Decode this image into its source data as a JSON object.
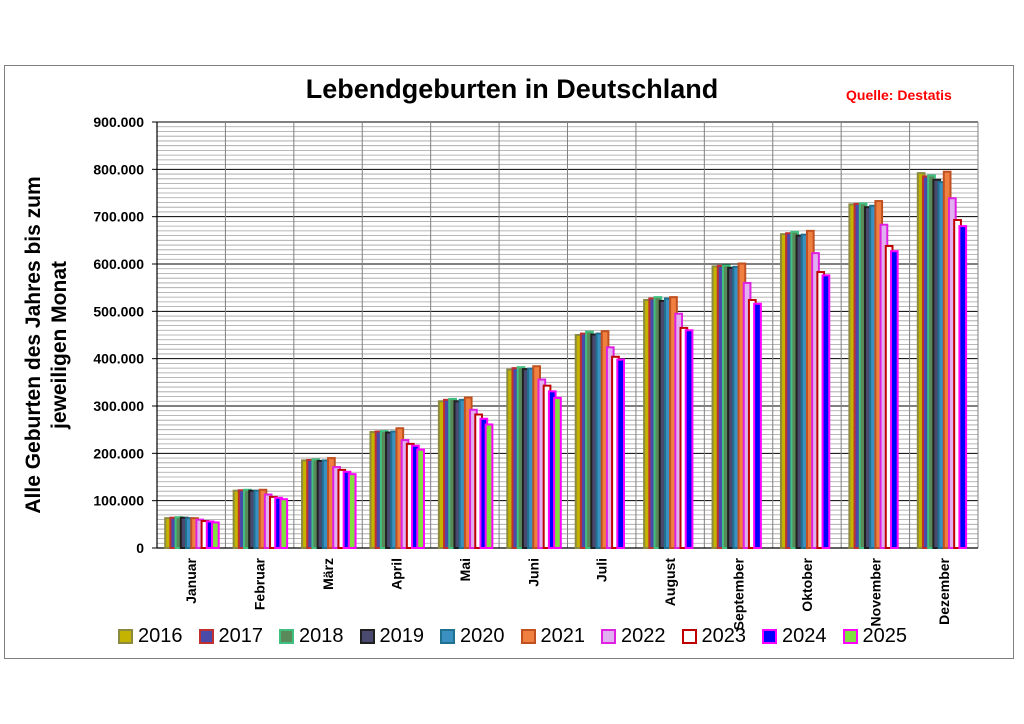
{
  "chart_data": {
    "type": "bar",
    "title": "Lebendgeburten in Deutschland",
    "source": "Quelle: Destatis",
    "ylabel": "Alle Geburten des Jahres bis zum jeweiligen Monat",
    "xlabel": "",
    "ylim": [
      0,
      900000
    ],
    "yticks": [
      "0",
      "100.000",
      "200.000",
      "300.000",
      "400.000",
      "500.000",
      "600.000",
      "700.000",
      "800.000",
      "900.000"
    ],
    "grid": true,
    "legend_position": "bottom",
    "categories": [
      "Januar",
      "Februar",
      "März",
      "April",
      "Mai",
      "Juni",
      "Juli",
      "August",
      "September",
      "Oktober",
      "November",
      "Dezember"
    ],
    "series": [
      {
        "name": "2016",
        "fill": "#c4b300",
        "border": "#8a8a40",
        "values": [
          63000,
          121000,
          185000,
          245000,
          310000,
          377000,
          450000,
          524000,
          595000,
          663000,
          726000,
          792000
        ]
      },
      {
        "name": "2017",
        "fill": "#4a4aa8",
        "border": "#c03030",
        "values": [
          64000,
          122000,
          186000,
          246000,
          313000,
          380000,
          453000,
          527000,
          596000,
          665000,
          727000,
          785000
        ]
      },
      {
        "name": "2018",
        "fill": "#5a8a5a",
        "border": "#40c080",
        "values": [
          65000,
          123000,
          187000,
          247000,
          315000,
          382000,
          457000,
          530000,
          597000,
          668000,
          728000,
          787000
        ]
      },
      {
        "name": "2019",
        "fill": "#4a4a70",
        "border": "#202020",
        "values": [
          64000,
          121000,
          184000,
          244000,
          310000,
          378000,
          451000,
          522000,
          592000,
          660000,
          720000,
          778000
        ]
      },
      {
        "name": "2020",
        "fill": "#3a90c0",
        "border": "#207090",
        "values": [
          63000,
          121000,
          185000,
          246000,
          313000,
          379000,
          453000,
          527000,
          594000,
          662000,
          723000,
          773000
        ]
      },
      {
        "name": "2021",
        "fill": "#f08040",
        "border": "#c05020",
        "values": [
          63000,
          123000,
          190000,
          253000,
          318000,
          384000,
          458000,
          530000,
          601000,
          670000,
          733000,
          795000
        ]
      },
      {
        "name": "2022",
        "fill": "#e0b0f0",
        "border": "#e020e0",
        "values": [
          60000,
          113000,
          171000,
          228000,
          292000,
          356000,
          424000,
          495000,
          560000,
          623000,
          683000,
          739000
        ]
      },
      {
        "name": "2023",
        "fill": "#ffffff",
        "border": "#c00000",
        "values": [
          57000,
          108000,
          165000,
          220000,
          282000,
          343000,
          404000,
          465000,
          524000,
          583000,
          638000,
          693000
        ]
      },
      {
        "name": "2024",
        "fill": "#0000ff",
        "border": "#ff00ff",
        "values": [
          56000,
          106000,
          161000,
          216000,
          273000,
          331000,
          398000,
          460000,
          516000,
          576000,
          627000,
          680000
        ]
      },
      {
        "name": "2025",
        "fill": "#80e040",
        "border": "#ff00ff",
        "values": [
          54000,
          103000,
          156000,
          208000,
          261000,
          317000,
          null,
          null,
          null,
          null,
          null,
          null
        ]
      }
    ]
  }
}
